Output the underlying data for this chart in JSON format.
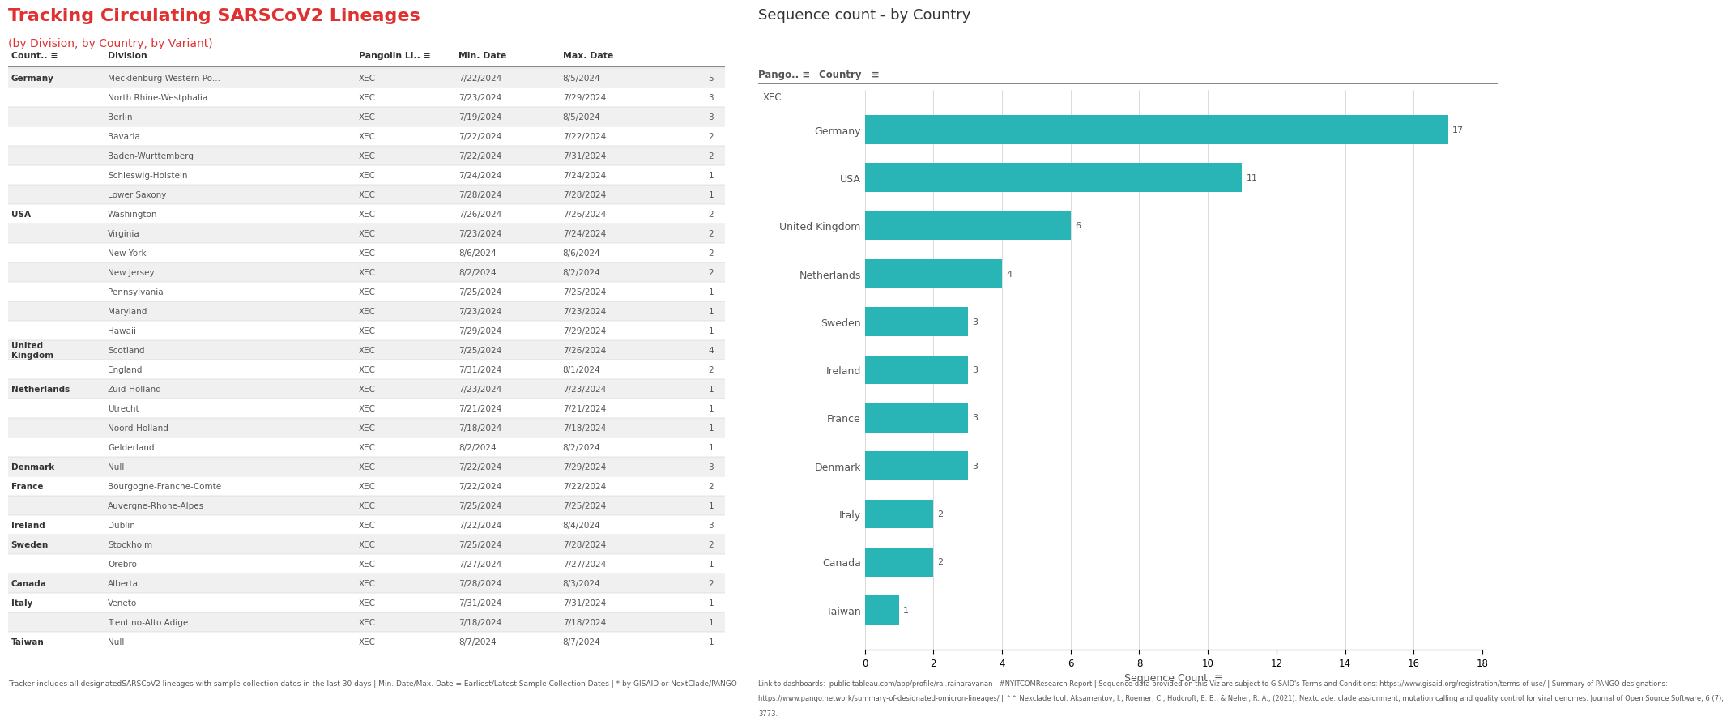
{
  "title_main": "Tracking Circulating SARSCoV2 Lineages",
  "title_sub": "(by Division, by Country, by Variant)",
  "title_color": "#e03030",
  "subtitle_color": "#e03030",
  "chart_title": "Sequence count - by Country",
  "chart_title_color": "#333333",
  "bar_color": "#29b5b5",
  "bar_label_color": "#666666",
  "axis_label": "Sequence Count",
  "countries": [
    "Germany",
    "USA",
    "United Kingdom",
    "Netherlands",
    "Sweden",
    "Ireland",
    "France",
    "Denmark",
    "Italy",
    "Canada",
    "Taiwan"
  ],
  "counts": [
    17,
    11,
    6,
    4,
    3,
    3,
    3,
    3,
    2,
    2,
    1
  ],
  "pango": "XEC",
  "xlim": [
    0,
    18
  ],
  "xticks": [
    0,
    2,
    4,
    6,
    8,
    10,
    12,
    14,
    16,
    18
  ],
  "table_headers": [
    "Count..",
    "Division",
    "Pangolin Li..",
    "Min. Date",
    "Max. Date",
    ""
  ],
  "table_rows": [
    [
      "Germany",
      "Mecklenburg-Western Po...",
      "XEC",
      "7/22/2024",
      "8/5/2024",
      "5"
    ],
    [
      "",
      "North Rhine-Westphalia",
      "XEC",
      "7/23/2024",
      "7/29/2024",
      "3"
    ],
    [
      "",
      "Berlin",
      "XEC",
      "7/19/2024",
      "8/5/2024",
      "3"
    ],
    [
      "",
      "Bavaria",
      "XEC",
      "7/22/2024",
      "7/22/2024",
      "2"
    ],
    [
      "",
      "Baden-Wurttemberg",
      "XEC",
      "7/22/2024",
      "7/31/2024",
      "2"
    ],
    [
      "",
      "Schleswig-Holstein",
      "XEC",
      "7/24/2024",
      "7/24/2024",
      "1"
    ],
    [
      "",
      "Lower Saxony",
      "XEC",
      "7/28/2024",
      "7/28/2024",
      "1"
    ],
    [
      "USA",
      "Washington",
      "XEC",
      "7/26/2024",
      "7/26/2024",
      "2"
    ],
    [
      "",
      "Virginia",
      "XEC",
      "7/23/2024",
      "7/24/2024",
      "2"
    ],
    [
      "",
      "New York",
      "XEC",
      "8/6/2024",
      "8/6/2024",
      "2"
    ],
    [
      "",
      "New Jersey",
      "XEC",
      "8/2/2024",
      "8/2/2024",
      "2"
    ],
    [
      "",
      "Pennsylvania",
      "XEC",
      "7/25/2024",
      "7/25/2024",
      "1"
    ],
    [
      "",
      "Maryland",
      "XEC",
      "7/23/2024",
      "7/23/2024",
      "1"
    ],
    [
      "",
      "Hawaii",
      "XEC",
      "7/29/2024",
      "7/29/2024",
      "1"
    ],
    [
      "United\nKingdom",
      "Scotland",
      "XEC",
      "7/25/2024",
      "7/26/2024",
      "4"
    ],
    [
      "",
      "England",
      "XEC",
      "7/31/2024",
      "8/1/2024",
      "2"
    ],
    [
      "Netherlands",
      "Zuid-Holland",
      "XEC",
      "7/23/2024",
      "7/23/2024",
      "1"
    ],
    [
      "",
      "Utrecht",
      "XEC",
      "7/21/2024",
      "7/21/2024",
      "1"
    ],
    [
      "",
      "Noord-Holland",
      "XEC",
      "7/18/2024",
      "7/18/2024",
      "1"
    ],
    [
      "",
      "Gelderland",
      "XEC",
      "8/2/2024",
      "8/2/2024",
      "1"
    ],
    [
      "Denmark",
      "Null",
      "XEC",
      "7/22/2024",
      "7/29/2024",
      "3"
    ],
    [
      "France",
      "Bourgogne-Franche-Comte",
      "XEC",
      "7/22/2024",
      "7/22/2024",
      "2"
    ],
    [
      "",
      "Auvergne-Rhone-Alpes",
      "XEC",
      "7/25/2024",
      "7/25/2024",
      "1"
    ],
    [
      "Ireland",
      "Dublin",
      "XEC",
      "7/22/2024",
      "8/4/2024",
      "3"
    ],
    [
      "Sweden",
      "Stockholm",
      "XEC",
      "7/25/2024",
      "7/28/2024",
      "2"
    ],
    [
      "",
      "Orebro",
      "XEC",
      "7/27/2024",
      "7/27/2024",
      "1"
    ],
    [
      "Canada",
      "Alberta",
      "XEC",
      "7/28/2024",
      "8/3/2024",
      "2"
    ],
    [
      "Italy",
      "Veneto",
      "XEC",
      "7/31/2024",
      "7/31/2024",
      "1"
    ],
    [
      "",
      "Trentino-Alto Adige",
      "XEC",
      "7/18/2024",
      "7/18/2024",
      "1"
    ],
    [
      "Taiwan",
      "Null",
      "XEC",
      "8/7/2024",
      "8/7/2024",
      "1"
    ]
  ],
  "footer_text": "Tracker includes all designatedSARSCoV2 lineages with sample collection dates in the last 30 days | Min. Date/Max. Date = Earliest/Latest Sample Collection Dates | * by GISAID or NextClade/PANGO",
  "link_line1": "Link to dashboards:  public.tableau.com/app/profile/rai.rainaravanan | #NYITCOMResearch Report | Sequence data provided on this Viz are subject to GISAID's Terms and Conditions: https://www.gisaid.org/registration/terms-of-use/ | Summary of PANGO designations:",
  "link_line2": "https://www.pango.network/summary-of-designated-omicron-lineages/ | ^^ Nexclade tool: Aksamentov, I., Roemer, C., Hodcroft, E. B., & Neher, R. A., (2021). Nextclade: clade assignment, mutation calling and quality control for viral genomes. Journal of Open Source Software, 6 (7),",
  "link_line3": "3773.",
  "background_color": "#ffffff",
  "table_bg_even": "#f0f0f0",
  "table_bg_odd": "#ffffff"
}
